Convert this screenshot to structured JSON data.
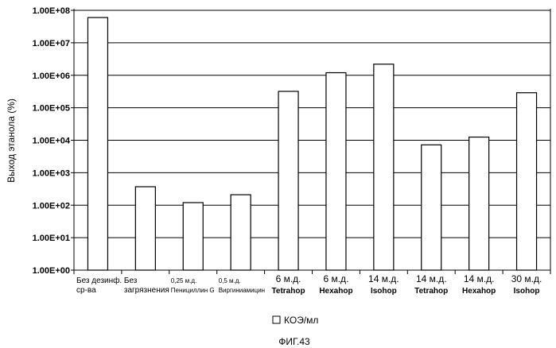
{
  "chart_data": {
    "type": "bar",
    "ylabel": "Выход этанола (%)",
    "yscale": "log",
    "ylim": [
      1,
      100000000
    ],
    "yticks": [
      "1.00E+00",
      "1.00E+01",
      "1.00E+02",
      "1.00E+03",
      "1.00E+04",
      "1.00E+05",
      "1.00E+06",
      "1.00E+07",
      "1.00E+08"
    ],
    "grid": true,
    "categories": [
      [
        "Без дезинф.",
        "ср-ва"
      ],
      [
        "Без",
        "загрязнения"
      ],
      [
        "0,25 м.д.",
        "Пенициллин G"
      ],
      [
        "0,5 м.д.",
        "Виргиниамицин"
      ],
      [
        "6 м.д.",
        "Tetrahop"
      ],
      [
        "6 м.д.",
        "Hexahop"
      ],
      [
        "14 м.д.",
        "Isohop"
      ],
      [
        "14 м.д.",
        "Tetrahop"
      ],
      [
        "14 м.д.",
        "Hexahop"
      ],
      [
        "30 м.д.",
        "Isohop"
      ]
    ],
    "series": [
      {
        "name": "КОЭ/мл",
        "values": [
          60000000,
          370,
          120,
          210,
          320000,
          1200000,
          2200000,
          7200,
          12500,
          290000
        ]
      }
    ],
    "legend_position": "bottom"
  },
  "caption": "ФИГ.43"
}
